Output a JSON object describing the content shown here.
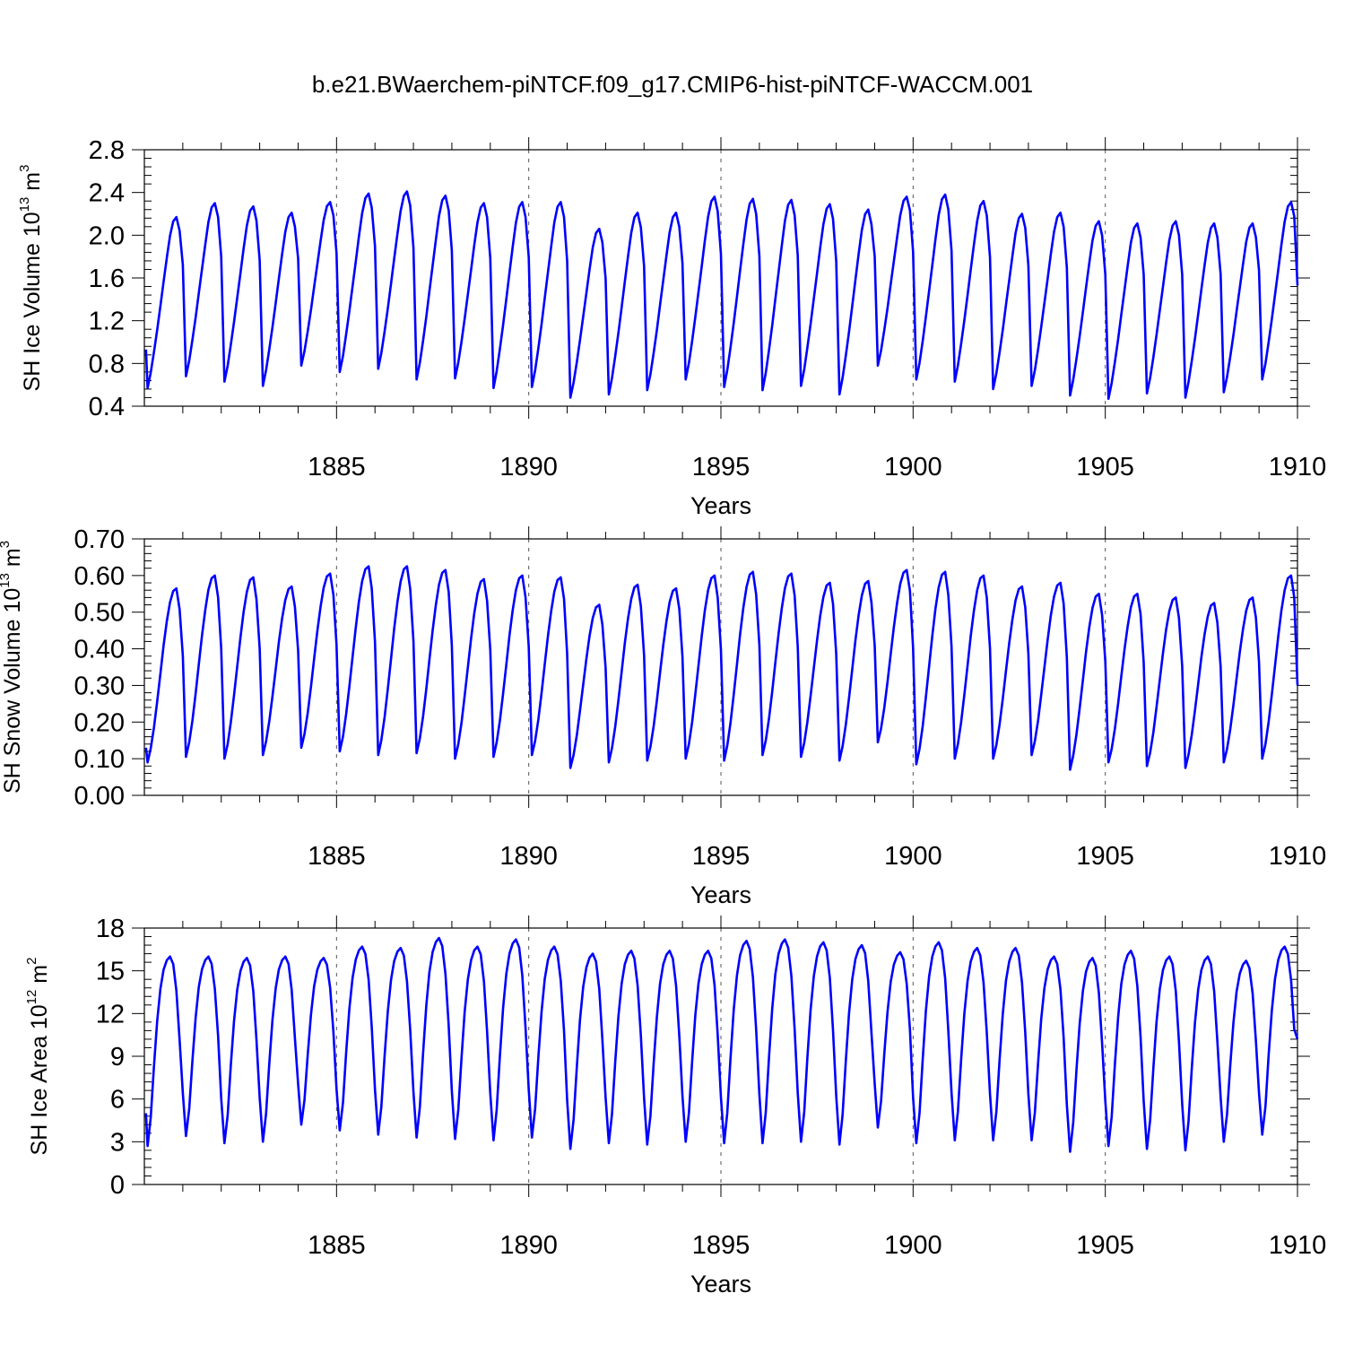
{
  "chart_data": [
    {
      "type": "line",
      "title": "b.e21.BWaerchem-piNTCF.f09_g17.CMIP6-hist-piNTCF-WACCM.001",
      "xlabel": "Years",
      "ylabel": {
        "base": "SH Ice Volume 10",
        "exp1": "13",
        "mid": " m",
        "exp2": "3"
      },
      "xlim": [
        1880,
        1910
      ],
      "ylim": [
        0.4,
        2.8
      ],
      "x_ticks": [
        "1885",
        "1890",
        "1895",
        "1900",
        "1905",
        "1910"
      ],
      "y_ticks": [
        "0.4",
        "0.8",
        "1.2",
        "1.6",
        "2.0",
        "2.4",
        "2.8"
      ],
      "grid": "vertical dashed lines at 1885, 1890, 1895, 1900, 1905",
      "series_color": "#0000ff",
      "monthly_profile": [
        0.0,
        0.09,
        0.21,
        0.34,
        0.48,
        0.62,
        0.76,
        0.89,
        0.975,
        1.0,
        0.92,
        0.7,
        0.26
      ],
      "yearly_min": [
        0.57,
        0.68,
        0.63,
        0.59,
        0.78,
        0.72,
        0.75,
        0.65,
        0.66,
        0.57,
        0.58,
        0.48,
        0.51,
        0.55,
        0.65,
        0.58,
        0.55,
        0.59,
        0.51,
        0.78,
        0.65,
        0.63,
        0.56,
        0.59,
        0.5,
        0.47,
        0.52,
        0.48,
        0.53,
        0.65
      ],
      "yearly_max": [
        2.17,
        2.3,
        2.27,
        2.21,
        2.31,
        2.39,
        2.41,
        2.37,
        2.3,
        2.31,
        2.31,
        2.06,
        2.21,
        2.21,
        2.36,
        2.34,
        2.33,
        2.29,
        2.24,
        2.36,
        2.38,
        2.32,
        2.2,
        2.21,
        2.13,
        2.11,
        2.13,
        2.11,
        2.11,
        2.31
      ],
      "start_value": 0.93,
      "end_value": 1.53
    },
    {
      "type": "line",
      "xlabel": "Years",
      "ylabel": {
        "base": "SH Snow Volume 10",
        "exp1": "13",
        "mid": " m",
        "exp2": "3"
      },
      "xlim": [
        1880,
        1910
      ],
      "ylim": [
        0.0,
        0.7
      ],
      "x_ticks": [
        "1885",
        "1890",
        "1895",
        "1900",
        "1905",
        "1910"
      ],
      "y_ticks": [
        "0.00",
        "0.10",
        "0.20",
        "0.30",
        "0.40",
        "0.50",
        "0.60",
        "0.70"
      ],
      "grid": "vertical dashed lines at 1885, 1890, 1895, 1900, 1905",
      "series_color": "#0000ff",
      "monthly_profile": [
        0.0,
        0.08,
        0.2,
        0.35,
        0.51,
        0.67,
        0.81,
        0.92,
        0.985,
        1.0,
        0.88,
        0.6,
        0.18
      ],
      "yearly_min": [
        0.09,
        0.105,
        0.1,
        0.11,
        0.13,
        0.12,
        0.11,
        0.115,
        0.1,
        0.105,
        0.11,
        0.075,
        0.09,
        0.095,
        0.1,
        0.095,
        0.11,
        0.105,
        0.095,
        0.145,
        0.085,
        0.1,
        0.1,
        0.11,
        0.07,
        0.09,
        0.08,
        0.075,
        0.09,
        0.1
      ],
      "yearly_max": [
        0.565,
        0.6,
        0.595,
        0.57,
        0.605,
        0.625,
        0.625,
        0.615,
        0.59,
        0.6,
        0.595,
        0.52,
        0.575,
        0.565,
        0.6,
        0.61,
        0.605,
        0.58,
        0.585,
        0.615,
        0.61,
        0.6,
        0.57,
        0.58,
        0.55,
        0.55,
        0.54,
        0.525,
        0.54,
        0.6
      ],
      "start_value": 0.13,
      "end_value": 0.3
    },
    {
      "type": "line",
      "xlabel": "Years",
      "ylabel": {
        "base": "SH Ice Area 10",
        "exp1": "12",
        "mid": " m",
        "exp2": "2"
      },
      "xlim": [
        1880,
        1910
      ],
      "ylim": [
        0,
        18
      ],
      "x_ticks": [
        "1885",
        "1890",
        "1895",
        "1900",
        "1905",
        "1910"
      ],
      "y_ticks": [
        "0",
        "3",
        "6",
        "9",
        "12",
        "15",
        "18"
      ],
      "grid": "vertical dashed lines at 1885, 1890, 1895, 1900, 1905",
      "series_color": "#0000ff",
      "monthly_profile": [
        0.0,
        0.15,
        0.42,
        0.66,
        0.83,
        0.93,
        0.98,
        1.0,
        0.96,
        0.82,
        0.56,
        0.24,
        0.0
      ],
      "yearly_min": [
        2.7,
        3.4,
        2.9,
        3.0,
        4.2,
        3.8,
        3.5,
        3.3,
        3.2,
        3.1,
        3.3,
        2.5,
        2.9,
        2.8,
        3.0,
        2.9,
        2.9,
        3.0,
        2.8,
        4.0,
        2.9,
        3.1,
        3.1,
        3.1,
        2.3,
        2.7,
        2.5,
        2.4,
        3.0,
        3.5
      ],
      "yearly_max": [
        16.0,
        16.0,
        15.9,
        16.0,
        15.9,
        16.7,
        16.6,
        17.3,
        16.7,
        17.2,
        16.7,
        16.2,
        16.4,
        16.4,
        16.4,
        17.1,
        17.2,
        17.0,
        16.8,
        16.3,
        17.0,
        16.6,
        16.6,
        16.0,
        15.9,
        16.4,
        16.0,
        16.0,
        15.7,
        16.7
      ],
      "start_value": 5.0,
      "end_value": 10.2
    }
  ]
}
